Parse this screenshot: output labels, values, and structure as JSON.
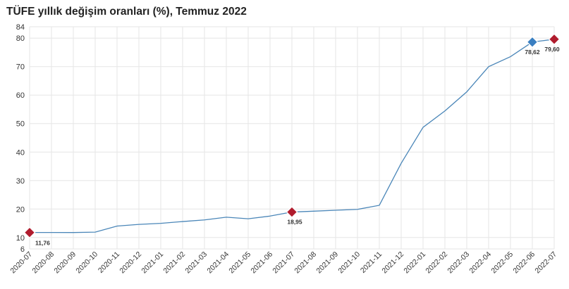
{
  "chart_data": {
    "type": "line",
    "title": "TÜFE yıllık değişim oranları (%), Temmuz 2022",
    "xlabel": "",
    "ylabel": "",
    "categories": [
      "2020-07",
      "2020-08",
      "2020-09",
      "2020-10",
      "2020-11",
      "2020-12",
      "2021-01",
      "2021-02",
      "2021-03",
      "2021-04",
      "2021-05",
      "2021-06",
      "2021-07",
      "2021-08",
      "2021-09",
      "2021-10",
      "2021-11",
      "2021-12",
      "2022-01",
      "2022-02",
      "2022-03",
      "2022-04",
      "2022-05",
      "2022-06",
      "2022-07"
    ],
    "series": [
      {
        "values": [
          11.76,
          11.77,
          11.75,
          11.89,
          14.03,
          14.6,
          14.97,
          15.61,
          16.19,
          17.14,
          16.59,
          17.53,
          18.95,
          19.25,
          19.58,
          19.89,
          21.31,
          36.08,
          48.69,
          54.44,
          61.14,
          69.97,
          73.5,
          78.62,
          79.6
        ]
      }
    ],
    "ylim": [
      6,
      84
    ],
    "yticks": [
      6,
      10,
      20,
      30,
      40,
      50,
      60,
      70,
      80,
      84
    ],
    "grid": true,
    "line_color": "#4a86b8",
    "markers": [
      {
        "index": 0,
        "label": "11,76",
        "color": "#b01c2e"
      },
      {
        "index": 12,
        "label": "18,95",
        "color": "#b01c2e"
      },
      {
        "index": 23,
        "label": "78,62",
        "color": "#3a7fc1"
      },
      {
        "index": 24,
        "label": "79,60",
        "color": "#b01c2e"
      }
    ]
  }
}
